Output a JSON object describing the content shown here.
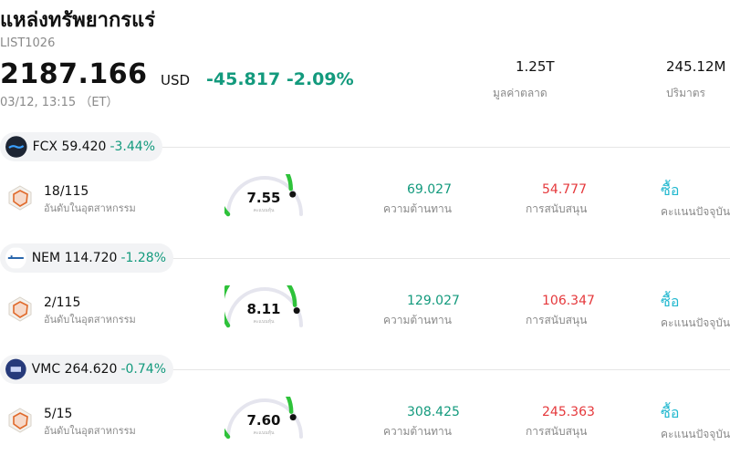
{
  "header": {
    "title": "แหล่งทรัพยากรแร่",
    "code": "LIST1026",
    "price": "2187.166",
    "currency": "USD",
    "change": "-45.817",
    "change_pct": "-2.09%",
    "timestamp": "03/12, 13:15 （ET）",
    "market_cap_value": "1.25T",
    "market_cap_label": "มูลค่าตลาด",
    "volume_value": "245.12M",
    "volume_label": "ปริมาตร"
  },
  "colors": {
    "up": "#139a7d",
    "down": "#e5383b",
    "gauge": "#2ec23a",
    "buy": "#22b8cf"
  },
  "stocks": [
    {
      "ticker": "FCX",
      "price": "59.420",
      "change_pct": "-3.44%",
      "logo_icon": "fcx-logo-icon",
      "rank": "18/115",
      "rank_label": "อันดับในอุตสาหกรรม",
      "score": "7.55",
      "score_caption": "คะแนนหุ้น",
      "resistance": "69.027",
      "resistance_label": "ความต้านทาน",
      "support": "54.777",
      "support_label": "การสนับสนุน",
      "action": "ซื้อ",
      "action_label": "คะแนนปัจจุบัน"
    },
    {
      "ticker": "NEM",
      "price": "114.720",
      "change_pct": "-1.28%",
      "logo_icon": "nem-logo-icon",
      "rank": "2/115",
      "rank_label": "อันดับในอุตสาหกรรม",
      "score": "8.11",
      "score_caption": "คะแนนหุ้น",
      "resistance": "129.027",
      "resistance_label": "ความต้านทาน",
      "support": "106.347",
      "support_label": "การสนับสนุน",
      "action": "ซื้อ",
      "action_label": "คะแนนปัจจุบัน"
    },
    {
      "ticker": "VMC",
      "price": "264.620",
      "change_pct": "-0.74%",
      "logo_icon": "vmc-logo-icon",
      "rank": "5/15",
      "rank_label": "อันดับในอุตสาหกรรม",
      "score": "7.60",
      "score_caption": "คะแนนหุ้น",
      "resistance": "308.425",
      "resistance_label": "ความต้านทาน",
      "support": "245.363",
      "support_label": "การสนับสนุน",
      "action": "ซื้อ",
      "action_label": "คะแนนปัจจุบัน"
    }
  ]
}
